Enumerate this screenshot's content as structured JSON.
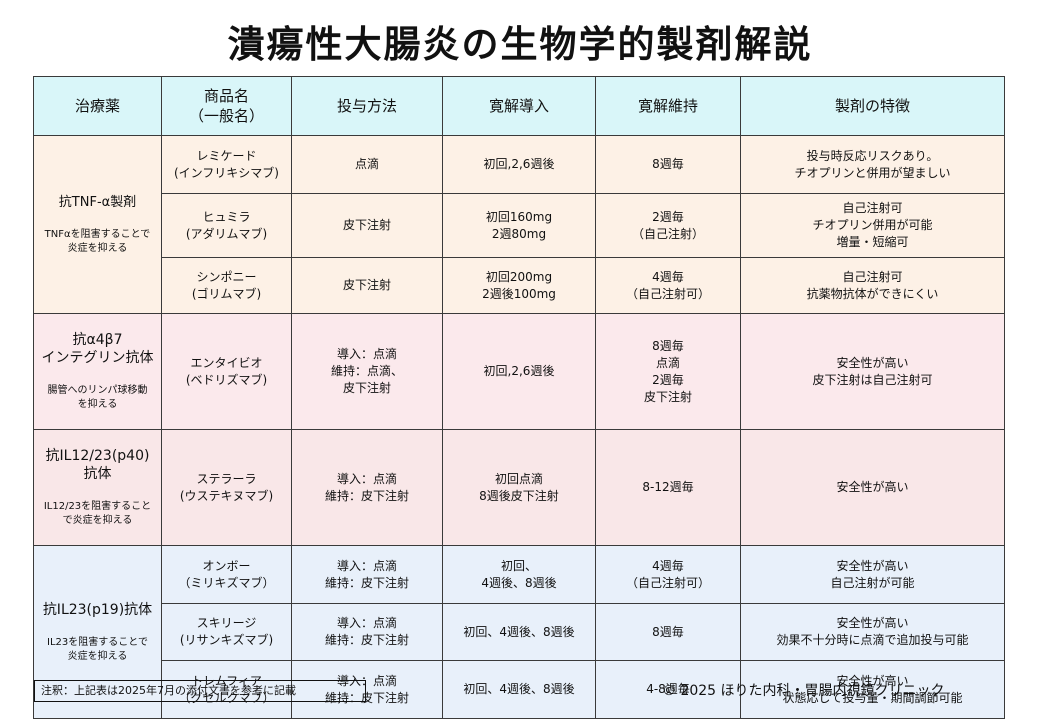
{
  "title": "潰瘍性大腸炎の生物学的製剤解説",
  "table": {
    "headers": {
      "drug_class": "治療薬",
      "product_name": "商品名\n（一般名）",
      "administration": "投与方法",
      "remission_induction": "寛解導入",
      "remission_maintenance": "寛解維持",
      "features": "製剤の特徴"
    },
    "groups": {
      "tnf": {
        "name": "抗TNF-α製剤",
        "desc": "TNFαを阻害することで\n炎症を抑える"
      },
      "a4b7": {
        "name": "抗α4β7\nインテグリン抗体",
        "desc": "腸管へのリンパ球移動\nを抑える"
      },
      "il12": {
        "name": "抗IL12/23(p40)\n抗体",
        "desc": "IL12/23を阻害すること\nで炎症を抑える"
      },
      "il23": {
        "name": "抗IL23(p19)抗体",
        "desc": "IL23を阻害することで\n炎症を抑える"
      }
    },
    "rows": [
      {
        "product": "レミケード\n(インフリキシマブ)",
        "admin": "点滴",
        "induction": "初回,2,6週後",
        "maintenance": "8週毎",
        "features": "投与時反応リスクあり。\nチオプリンと併用が望ましい"
      },
      {
        "product": "ヒュミラ\n(アダリムマブ)",
        "admin": "皮下注射",
        "induction": "初回160mg\n2週80mg",
        "maintenance": "2週毎\n（自己注射）",
        "features": "自己注射可\nチオプリン併用が可能\n増量・短縮可"
      },
      {
        "product": "シンポニー\n(ゴリムマブ)",
        "admin": "皮下注射",
        "induction": "初回200mg\n2週後100mg",
        "maintenance": "4週毎\n（自己注射可）",
        "features": "自己注射可\n抗薬物抗体ができにくい"
      },
      {
        "product": "エンタイビオ\n(ベドリズマブ)",
        "admin": "導入：点滴\n維持：点滴、\n皮下注射",
        "induction": "初回,2,6週後",
        "maintenance": "8週毎\n点滴\n2週毎\n皮下注射",
        "features": "安全性が高い\n皮下注射は自己注射可"
      },
      {
        "product": "ステラーラ\n(ウステキヌマブ)",
        "admin": "導入：点滴\n維持：皮下注射",
        "induction": "初回点滴\n8週後皮下注射",
        "maintenance": "8-12週毎",
        "features": "安全性が高い"
      },
      {
        "product": "オンボー\n（ミリキズマブ）",
        "admin": "導入：点滴\n維持：皮下注射",
        "induction": "初回、\n4週後、8週後",
        "maintenance": "4週毎\n（自己注射可）",
        "features": "安全性が高い\n自己注射が可能"
      },
      {
        "product": "スキリージ\n(リサンキズマブ)",
        "admin": "導入：点滴\n維持：皮下注射",
        "induction": "初回、4週後、8週後",
        "maintenance": "8週毎",
        "features": "安全性が高い\n効果不十分時に点滴で追加投与可能"
      },
      {
        "product": "トレムフィア\n（グセルクマブ）",
        "admin": "導入：点滴\n維持：皮下注射",
        "induction": "初回、4週後、8週後",
        "maintenance": "4-8週毎",
        "features": "安全性が高い\n状態応じて投与量・期間調節可能"
      }
    ]
  },
  "note": "注釈：上記表は2025年7月の添付文書を参考に記載",
  "copyright": "© 2025 ほりた内科・胃腸内視鏡クリニック",
  "colors": {
    "header_bg": "#d9f6f9",
    "tnf_bg": "#fdf1e6",
    "a4b7_bg": "#fbe9ec",
    "il12_bg": "#f9e7e8",
    "il23_bg": "#e8f0fa"
  }
}
